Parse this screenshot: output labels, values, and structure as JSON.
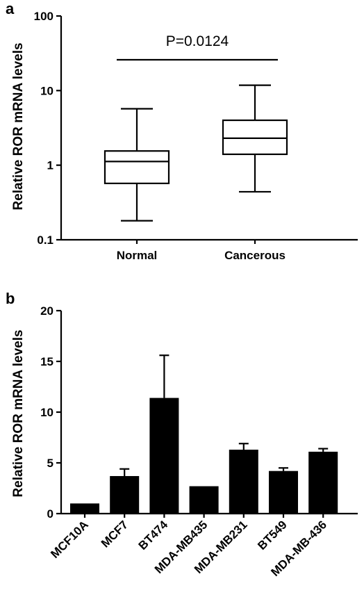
{
  "chart_data": [
    {
      "panel": "a",
      "type": "box",
      "ylabel": "Relative ROR mRNA levels",
      "yscale": "log",
      "ylim": [
        0.1,
        100
      ],
      "yticks": [
        "0.1",
        "1",
        "10",
        "100"
      ],
      "categories": [
        "Normal",
        "Cancerous"
      ],
      "boxes": [
        {
          "category": "Normal",
          "min": 0.18,
          "q1": 0.57,
          "median": 1.12,
          "q3": 1.55,
          "max": 5.7
        },
        {
          "category": "Cancerous",
          "min": 0.44,
          "q1": 1.4,
          "median": 2.3,
          "q3": 4.0,
          "max": 11.8
        }
      ],
      "annotation": "P=0.0124"
    },
    {
      "panel": "b",
      "type": "bar",
      "ylabel": "Relative ROR mRNA levels",
      "ylim": [
        0,
        20
      ],
      "yticks": [
        "0",
        "5",
        "10",
        "15",
        "20"
      ],
      "categories": [
        "MCF10A",
        "MCF7",
        "BT474",
        "MDA-MB435",
        "MDA-MB231",
        "BT549",
        "MDA-MB-436"
      ],
      "values": [
        1.0,
        3.7,
        11.4,
        2.7,
        6.3,
        4.2,
        6.1
      ],
      "errors": [
        0.0,
        0.7,
        4.2,
        0.0,
        0.6,
        0.3,
        0.3
      ]
    }
  ]
}
